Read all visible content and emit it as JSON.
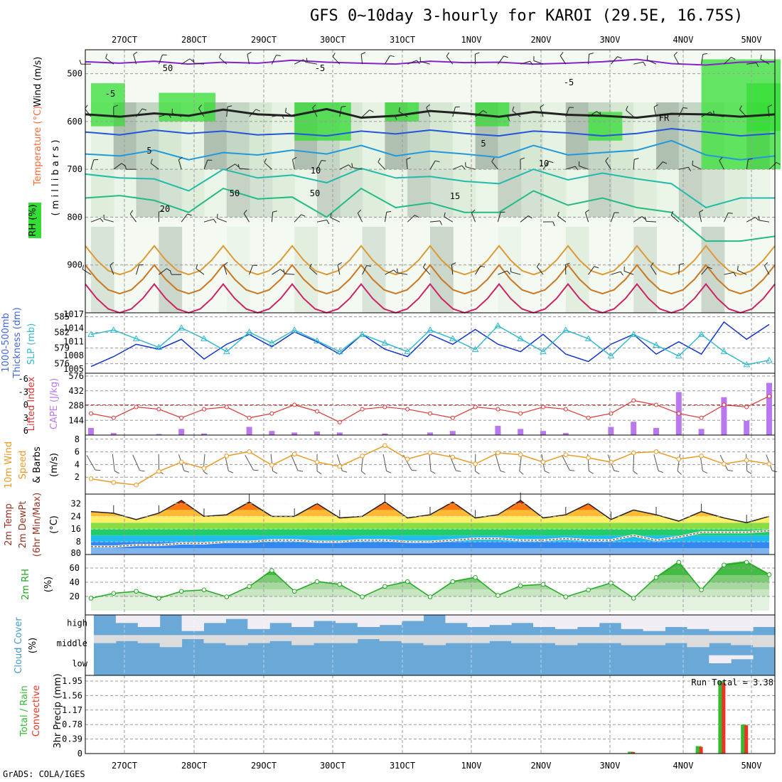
{
  "title": "GFS 0~10day 3-hourly for KAROI (29.5E, 16.75S)",
  "footer": "GrADS: COLA/IGES",
  "colors": {
    "grid": "#9a9a9a",
    "rh_green": "#33dd33",
    "rh_gray": "#b8c8b8",
    "cloud_blue": "#6aa8d8",
    "cloud_white": "#f0eef4",
    "precip_total": "#33bb33",
    "precip_conv": "#ee3322",
    "cape": "#bb77ee",
    "li": "#dd3333",
    "slp": "#33bbcc",
    "thickness": "#1133cc",
    "wind": "#ee9922",
    "rh2m": "#22aa22"
  },
  "chart_data": {
    "type": "line",
    "x_axis": {
      "labels": [
        "27OCT",
        "28OCT",
        "29OCT",
        "30OCT",
        "31OCT",
        "1NOV",
        "2NOV",
        "3NOV",
        "4NOV",
        "5NOV"
      ]
    },
    "panels": [
      {
        "id": "upper-air",
        "type": "heatmap",
        "ylabels": [
          "Wind (m/s)",
          "Temperature (°C)",
          "RH (%)",
          "( m i l l i b a r s )"
        ],
        "yticks": [
          500,
          600,
          700,
          800,
          900
        ],
        "ylim": [
          1000,
          450
        ],
        "contour_labels": [
          "-5",
          "-5",
          "-5",
          "5",
          "5",
          "10",
          "10",
          "15",
          "20",
          "FR",
          "50",
          "50",
          "50"
        ],
        "isotherms": [
          {
            "label": "-5",
            "color": "#8822cc",
            "p": [
              475,
              478,
              474,
              480,
              476,
              478,
              472,
              476,
              478,
              480,
              474,
              477,
              476,
              480,
              478,
              475,
              470,
              479,
              482,
              476,
              475
            ]
          },
          {
            "label": "FR",
            "color": "#222222",
            "p": [
              585,
              590,
              583,
              588,
              575,
              585,
              588,
              574,
              592,
              588,
              578,
              583,
              590,
              580,
              586,
              588,
              592,
              584,
              585,
              590,
              585
            ]
          },
          {
            "label": "5",
            "color": "#2255dd",
            "p": [
              622,
              628,
              618,
              625,
              620,
              628,
              625,
              630,
              620,
              626,
              618,
              625,
              630,
              620,
              624,
              630,
              625,
              615,
              622,
              630,
              625
            ]
          },
          {
            "label": "10",
            "color": "#2299dd",
            "p": [
              668,
              672,
              660,
              680,
              665,
              670,
              660,
              668,
              650,
              672,
              662,
              668,
              675,
              650,
              670,
              665,
              660,
              640,
              670,
              680,
              672
            ]
          },
          {
            "label": "15",
            "color": "#22bbaa",
            "p": [
              710,
              718,
              720,
              745,
              700,
              718,
              712,
              728,
              698,
              718,
              715,
              725,
              730,
              700,
              722,
              708,
              720,
              730,
              780,
              760,
              760
            ]
          },
          {
            "label": "20",
            "color": "#22bb88",
            "p": [
              760,
              755,
              765,
              790,
              740,
              762,
              758,
              800,
              740,
              780,
              770,
              790,
              790,
              745,
              775,
              760,
              780,
              790,
              850,
              850,
              840
            ]
          }
        ]
      },
      {
        "id": "thickness-slp",
        "ylabels": [
          "1000-500mb",
          "Thickness (dm)",
          "SLP (mb)"
        ],
        "yticks_left": [
          576,
          579,
          582,
          585
        ],
        "yticks_right": [
          1005,
          1008,
          1011,
          1014,
          1017
        ],
        "series": [
          {
            "name": "1000-500mb Thickness (dm)",
            "color": "#1133cc",
            "values": [
              575.5,
              577.5,
              580,
              579,
              581,
              577,
              580,
              582,
              579.5,
              582.5,
              580.5,
              578,
              582,
              579,
              577.5,
              582,
              580,
              583,
              580,
              578.5,
              582,
              578,
              576.5,
              580,
              582,
              578,
              580.5,
              578,
              584.5,
              581,
              584
            ]
          },
          {
            "name": "SLP (mb)",
            "color": "#33bbcc",
            "values": [
              1013,
              1014,
              1012,
              1010,
              1014.5,
              1012,
              1009,
              1013.5,
              1011,
              1014,
              1011.5,
              1009,
              1013,
              1011,
              1009,
              1014,
              1012,
              1009.5,
              1015,
              1012,
              1009,
              1014,
              1012,
              1008,
              1013,
              1010.5,
              1008,
              1013,
              1009,
              1006,
              1007
            ]
          }
        ]
      },
      {
        "id": "cape-li",
        "ylabels": [
          "Lifted Index",
          "CAPE (J/kg)"
        ],
        "yticks_left": [
          -6,
          -3,
          0,
          3,
          6
        ],
        "yticks_right": [
          144,
          288,
          432,
          576
        ],
        "series": [
          {
            "name": "Lifted Index",
            "color": "#dd3333",
            "values": [
              2,
              3,
              0.5,
              1,
              3,
              1,
              0.5,
              3,
              2,
              0,
              1.5,
              4,
              1,
              0.5,
              1,
              2,
              3,
              0.5,
              1,
              2,
              0.5,
              1,
              3,
              2,
              -1,
              0,
              2,
              3,
              0,
              0.5,
              -2
            ]
          },
          {
            "name": "CAPE (J/kg)",
            "color": "#bb77ee",
            "values": [
              70,
              20,
              0,
              10,
              60,
              15,
              0,
              80,
              40,
              25,
              35,
              25,
              0,
              15,
              0,
              25,
              40,
              0,
              90,
              60,
              40,
              20,
              0,
              80,
              130,
              70,
              420,
              60,
              370,
              140,
              510
            ]
          }
        ]
      },
      {
        "id": "wind10m",
        "ylabels": [
          "10m Wind",
          "Speed",
          "& Barbs",
          "(m/s)"
        ],
        "yticks": [
          2,
          4,
          6,
          8
        ],
        "ylim": [
          0,
          8
        ],
        "series": [
          {
            "name": "10m Wind Speed",
            "color": "#ee9922",
            "values": [
              1.8,
              1.2,
              0.8,
              3,
              4.5,
              3.5,
              5.5,
              6.2,
              4,
              5.8,
              4.5,
              3.8,
              5.5,
              7.2,
              5,
              6,
              5.3,
              4.2,
              6,
              5.7,
              4.5,
              5.7,
              5.2,
              4.5,
              6,
              6.2,
              5,
              5.5,
              4.2,
              4.8,
              4.2
            ]
          }
        ]
      },
      {
        "id": "temp2m",
        "ylabels": [
          "2m Temp",
          "2m DewPt",
          "(6hr Min/Max)",
          "(°C)"
        ],
        "yticks": [
          8,
          16,
          24,
          32
        ],
        "ylim": [
          0,
          38
        ],
        "y_extra_ticks": [
          "80"
        ],
        "series": [
          {
            "name": "2m Temp",
            "color": "#222222",
            "values": [
              27,
              26,
              22,
              26,
              34,
              24,
              25,
              33,
              24,
              24,
              32,
              23,
              24,
              33,
              23,
              25,
              33,
              23,
              25,
              34,
              23,
              25,
              32,
              22,
              28,
              25,
              21,
              27,
              23,
              20,
              24
            ]
          },
          {
            "name": "2m DewPt",
            "color": "#886644",
            "values": [
              5,
              5,
              6,
              6,
              7,
              7,
              8,
              8,
              9,
              9,
              8,
              8,
              9,
              9,
              8,
              8,
              9,
              10,
              10,
              9,
              9,
              10,
              9,
              9,
              12,
              9,
              11,
              14,
              14,
              14,
              15
            ]
          }
        ]
      },
      {
        "id": "rh2m",
        "type": "area",
        "ylabels": [
          "2m RH",
          "(%)"
        ],
        "yticks": [
          20,
          40,
          60
        ],
        "ylim": [
          0,
          75
        ],
        "series": [
          {
            "name": "2m RH",
            "color": "#22aa22",
            "values": [
              18,
              25,
              28,
              18,
              28,
              30,
              20,
              35,
              58,
              28,
              42,
              38,
              20,
              35,
              42,
              20,
              42,
              48,
              22,
              36,
              38,
              20,
              30,
              40,
              18,
              48,
              70,
              30,
              66,
              70,
              52
            ]
          }
        ]
      },
      {
        "id": "cloud-cover",
        "ylabels": [
          "Cloud Cover",
          "(%)"
        ],
        "levels": [
          "high",
          "middle",
          "low"
        ],
        "series": [
          {
            "name": "high",
            "values": [
              100,
              60,
              40,
              100,
              20,
              60,
              80,
              30,
              60,
              40,
              70,
              60,
              40,
              50,
              70,
              100,
              60,
              40,
              50,
              60,
              40,
              30,
              40,
              60,
              30,
              20,
              40,
              30,
              20,
              20,
              40
            ]
          },
          {
            "name": "middle",
            "values": [
              60,
              70,
              60,
              40,
              80,
              60,
              50,
              60,
              70,
              50,
              60,
              60,
              80,
              70,
              60,
              50,
              60,
              60,
              70,
              60,
              60,
              50,
              60,
              60,
              50,
              50,
              60,
              40,
              60,
              50,
              40
            ]
          },
          {
            "name": "low",
            "values": [
              100,
              100,
              100,
              100,
              100,
              100,
              100,
              100,
              100,
              100,
              100,
              100,
              100,
              100,
              100,
              100,
              100,
              100,
              100,
              100,
              100,
              100,
              100,
              100,
              100,
              100,
              100,
              100,
              60,
              80,
              100
            ]
          }
        ]
      },
      {
        "id": "precip",
        "type": "bar",
        "ylabels": [
          "Total / Rain",
          "Convective",
          "3hr Precip (mm)"
        ],
        "yticks": [
          "0",
          "0.39",
          "0.78",
          "1.17",
          "1.56",
          "1.95"
        ],
        "ylim": [
          0,
          1.95
        ],
        "annotation": "Run Total = 3.38",
        "series": [
          {
            "name": "Total / Rain",
            "color": "#33bb33",
            "values": [
              0,
              0,
              0,
              0,
              0,
              0,
              0,
              0,
              0,
              0,
              0,
              0,
              0,
              0,
              0,
              0,
              0,
              0,
              0,
              0,
              0,
              0,
              0,
              0,
              0.05,
              0,
              0,
              0.2,
              1.95,
              0.78,
              0
            ]
          },
          {
            "name": "Convective",
            "color": "#ee3322",
            "values": [
              0,
              0,
              0,
              0,
              0,
              0,
              0,
              0,
              0,
              0,
              0,
              0,
              0,
              0,
              0,
              0,
              0,
              0,
              0,
              0,
              0,
              0,
              0,
              0,
              0.04,
              0,
              0,
              0.18,
              1.9,
              0.76,
              0
            ]
          }
        ]
      }
    ]
  }
}
